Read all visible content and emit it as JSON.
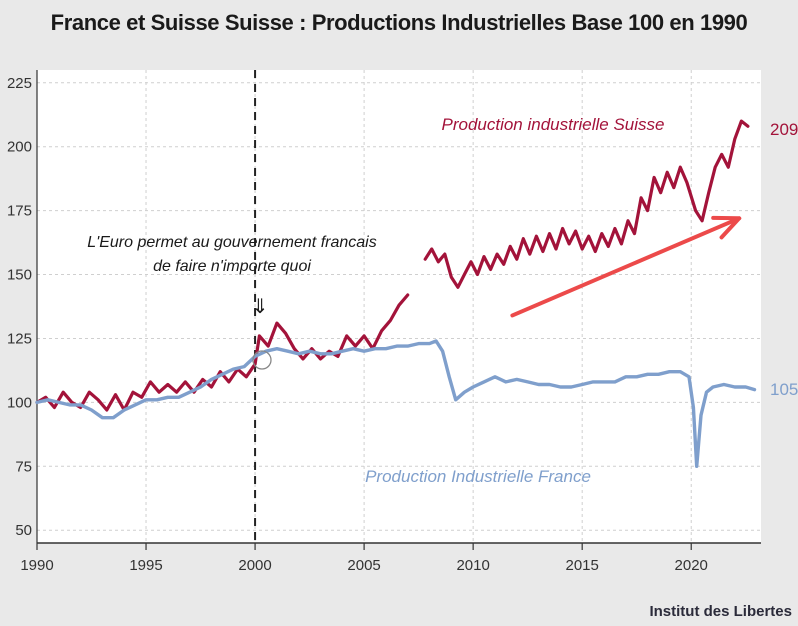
{
  "title": "France et Suisse Suisse : Productions Industrielles  Base 100 en 1990",
  "source": "Institut des Libertes",
  "colors": {
    "suisse": "#a3133a",
    "france": "#7f9fcc",
    "arrow": "#ec4a4a",
    "grid": "#cfcfcf"
  },
  "chart_data": {
    "type": "line",
    "title": "France et Suisse Suisse : Productions Industrielles  Base 100 en 1990",
    "xlim": [
      1990,
      2023.2
    ],
    "ylim": [
      45,
      230
    ],
    "xticks": [
      "1990",
      "1995",
      "2000",
      "2005",
      "2010",
      "2015",
      "2020"
    ],
    "yticks": [
      "50",
      "75",
      "100",
      "125",
      "150",
      "175",
      "200",
      "225"
    ],
    "grid": true,
    "vline": {
      "x": 2000,
      "style": "dashed"
    },
    "annotation": {
      "lines": [
        "L'Euro permet au gouvernement francais",
        "de faire n'importe quoi"
      ],
      "pointer": "⇓",
      "x": 2000,
      "y": 122
    },
    "arrow": {
      "from": [
        2011.8,
        134
      ],
      "to": [
        2022.2,
        172
      ]
    },
    "series": [
      {
        "name": "Production industrielle Suisse",
        "end_label": "209",
        "segments": [
          [
            [
              1990.0,
              100
            ],
            [
              1990.4,
              102
            ],
            [
              1990.8,
              98
            ],
            [
              1991.2,
              104
            ],
            [
              1991.6,
              100
            ],
            [
              1992.0,
              98
            ],
            [
              1992.4,
              104
            ],
            [
              1992.8,
              101
            ],
            [
              1993.2,
              97
            ],
            [
              1993.6,
              103
            ],
            [
              1994.0,
              97
            ],
            [
              1994.4,
              104
            ],
            [
              1994.8,
              102
            ],
            [
              1995.2,
              108
            ],
            [
              1995.6,
              104
            ],
            [
              1996.0,
              107
            ],
            [
              1996.4,
              104
            ],
            [
              1996.8,
              108
            ],
            [
              1997.2,
              104
            ],
            [
              1997.6,
              109
            ],
            [
              1998.0,
              106
            ],
            [
              1998.4,
              112
            ],
            [
              1998.8,
              108
            ],
            [
              1999.2,
              113
            ],
            [
              1999.6,
              110
            ],
            [
              2000.0,
              115
            ],
            [
              2000.2,
              126
            ],
            [
              2000.6,
              122
            ],
            [
              2001.0,
              131
            ],
            [
              2001.4,
              127
            ],
            [
              2001.8,
              121
            ],
            [
              2002.2,
              117
            ],
            [
              2002.6,
              121
            ],
            [
              2003.0,
              117
            ],
            [
              2003.4,
              120
            ],
            [
              2003.8,
              118
            ],
            [
              2004.2,
              126
            ],
            [
              2004.6,
              122
            ],
            [
              2005.0,
              126
            ],
            [
              2005.4,
              121
            ],
            [
              2005.8,
              128
            ],
            [
              2006.2,
              132
            ],
            [
              2006.6,
              138
            ],
            [
              2007.0,
              142
            ]
          ],
          [
            [
              2007.8,
              156
            ],
            [
              2008.1,
              160
            ],
            [
              2008.4,
              155
            ],
            [
              2008.7,
              158
            ],
            [
              2009.0,
              149
            ],
            [
              2009.3,
              145
            ],
            [
              2009.6,
              150
            ],
            [
              2009.9,
              155
            ],
            [
              2010.2,
              150
            ],
            [
              2010.5,
              157
            ],
            [
              2010.8,
              152
            ],
            [
              2011.1,
              158
            ],
            [
              2011.4,
              154
            ],
            [
              2011.7,
              161
            ],
            [
              2012.0,
              156
            ],
            [
              2012.3,
              164
            ],
            [
              2012.6,
              158
            ],
            [
              2012.9,
              165
            ],
            [
              2013.2,
              159
            ],
            [
              2013.5,
              166
            ],
            [
              2013.8,
              160
            ],
            [
              2014.1,
              168
            ],
            [
              2014.4,
              162
            ],
            [
              2014.7,
              167
            ],
            [
              2015.0,
              160
            ],
            [
              2015.3,
              165
            ],
            [
              2015.6,
              159
            ],
            [
              2015.9,
              166
            ],
            [
              2016.2,
              161
            ],
            [
              2016.5,
              168
            ],
            [
              2016.8,
              162
            ],
            [
              2017.1,
              171
            ],
            [
              2017.4,
              166
            ],
            [
              2017.7,
              180
            ],
            [
              2018.0,
              175
            ],
            [
              2018.3,
              188
            ],
            [
              2018.6,
              182
            ],
            [
              2018.9,
              190
            ],
            [
              2019.2,
              184
            ],
            [
              2019.5,
              192
            ],
            [
              2019.8,
              186
            ],
            [
              2020.2,
              175
            ],
            [
              2020.5,
              171
            ],
            [
              2020.8,
              182
            ],
            [
              2021.1,
              192
            ],
            [
              2021.4,
              197
            ],
            [
              2021.7,
              192
            ],
            [
              2022.0,
              203
            ],
            [
              2022.3,
              210
            ],
            [
              2022.6,
              208
            ]
          ]
        ]
      },
      {
        "name": "Production Industrielle France",
        "end_label": "105",
        "segments": [
          [
            [
              1990.0,
              100
            ],
            [
              1990.5,
              101
            ],
            [
              1991.0,
              100
            ],
            [
              1991.5,
              99
            ],
            [
              1992.0,
              99
            ],
            [
              1992.5,
              97
            ],
            [
              1993.0,
              94
            ],
            [
              1993.5,
              94
            ],
            [
              1994.0,
              97
            ],
            [
              1994.5,
              99
            ],
            [
              1995.0,
              101
            ],
            [
              1995.5,
              101
            ],
            [
              1996.0,
              102
            ],
            [
              1996.5,
              102
            ],
            [
              1997.0,
              104
            ],
            [
              1997.5,
              106
            ],
            [
              1998.0,
              109
            ],
            [
              1998.5,
              111
            ],
            [
              1999.0,
              113
            ],
            [
              1999.5,
              114
            ],
            [
              2000.0,
              118
            ],
            [
              2000.5,
              120
            ],
            [
              2001.0,
              121
            ],
            [
              2001.5,
              120
            ],
            [
              2002.0,
              119
            ],
            [
              2002.5,
              120
            ],
            [
              2003.0,
              119
            ],
            [
              2003.5,
              119
            ],
            [
              2004.0,
              120
            ],
            [
              2004.5,
              121
            ],
            [
              2005.0,
              120
            ],
            [
              2005.5,
              121
            ],
            [
              2006.0,
              121
            ],
            [
              2006.5,
              122
            ],
            [
              2007.0,
              122
            ],
            [
              2007.5,
              123
            ],
            [
              2008.0,
              123
            ],
            [
              2008.3,
              124
            ],
            [
              2008.6,
              120
            ],
            [
              2008.9,
              110
            ],
            [
              2009.2,
              101
            ],
            [
              2009.6,
              104
            ],
            [
              2010.0,
              106
            ],
            [
              2010.5,
              108
            ],
            [
              2011.0,
              110
            ],
            [
              2011.5,
              108
            ],
            [
              2012.0,
              109
            ],
            [
              2012.5,
              108
            ],
            [
              2013.0,
              107
            ],
            [
              2013.5,
              107
            ],
            [
              2014.0,
              106
            ],
            [
              2014.5,
              106
            ],
            [
              2015.0,
              107
            ],
            [
              2015.5,
              108
            ],
            [
              2016.0,
              108
            ],
            [
              2016.5,
              108
            ],
            [
              2017.0,
              110
            ],
            [
              2017.5,
              110
            ],
            [
              2018.0,
              111
            ],
            [
              2018.5,
              111
            ],
            [
              2019.0,
              112
            ],
            [
              2019.5,
              112
            ],
            [
              2019.9,
              110
            ],
            [
              2020.1,
              98
            ],
            [
              2020.25,
              75
            ],
            [
              2020.45,
              95
            ],
            [
              2020.7,
              104
            ],
            [
              2021.0,
              106
            ],
            [
              2021.5,
              107
            ],
            [
              2022.0,
              106
            ],
            [
              2022.5,
              106
            ],
            [
              2022.9,
              105
            ]
          ]
        ]
      }
    ]
  }
}
